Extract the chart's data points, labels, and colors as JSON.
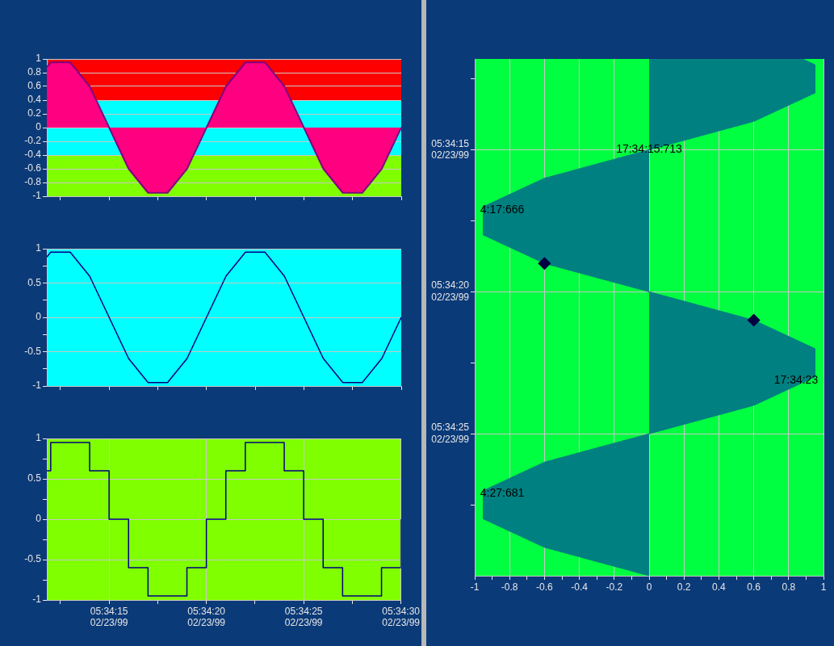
{
  "chart_data": [
    {
      "type": "area",
      "x": [
        "1999-02-23T05:34:11.800",
        "1999-02-23T05:34:12",
        "1999-02-23T05:34:13",
        "1999-02-23T05:34:14",
        "1999-02-23T05:34:15",
        "1999-02-23T05:34:16",
        "1999-02-23T05:34:17",
        "1999-02-23T05:34:18",
        "1999-02-23T05:34:19",
        "1999-02-23T05:34:20",
        "1999-02-23T05:34:21",
        "1999-02-23T05:34:22",
        "1999-02-23T05:34:23",
        "1999-02-23T05:34:24",
        "1999-02-23T05:34:25",
        "1999-02-23T05:34:26",
        "1999-02-23T05:34:27",
        "1999-02-23T05:34:28",
        "1999-02-23T05:34:29",
        "1999-02-23T05:34:30"
      ],
      "values": [
        0.88,
        0.95,
        0.95,
        0.6,
        0,
        -0.6,
        -0.95,
        -0.95,
        -0.6,
        0,
        0.6,
        0.95,
        0.95,
        0.6,
        0,
        -0.6,
        -0.95,
        -0.95,
        -0.6,
        0
      ],
      "color": "#ff0080",
      "xlim": [
        "1999-02-23T05:34:11.800",
        "1999-02-23T05:34:30"
      ],
      "xticks": [
        {
          "value": "1999-02-23T05:34:12.500",
          "label": null
        },
        {
          "value": "1999-02-23T05:34:15",
          "label": null
        },
        {
          "value": "1999-02-23T05:34:17.500",
          "label": null
        },
        {
          "value": "1999-02-23T05:34:20",
          "label": null
        },
        {
          "value": "1999-02-23T05:34:22.500",
          "label": null
        },
        {
          "value": "1999-02-23T05:34:25",
          "label": null
        },
        {
          "value": "1999-02-23T05:34:27.500",
          "label": null
        },
        {
          "value": "1999-02-23T05:34:30",
          "label": null
        }
      ],
      "ylim": [
        -1,
        1
      ],
      "yticks": [
        -1,
        -0.8,
        -0.6,
        -0.4,
        -0.2,
        0,
        0.2,
        0.4,
        0.6,
        0.8,
        1
      ],
      "grid": true,
      "tick_labels": "y",
      "marker": "none",
      "bands": [
        {
          "axis": "y",
          "from": 0.4,
          "to": 1,
          "color": "#ff0000"
        },
        {
          "axis": "y",
          "from": -0.4,
          "to": 0.4,
          "color": "#00ffff"
        },
        {
          "axis": "y",
          "from": -1,
          "to": -0.4,
          "color": "#80ff00"
        }
      ]
    },
    {
      "type": "line",
      "x": [
        "1999-02-23T05:34:11.800",
        "1999-02-23T05:34:12",
        "1999-02-23T05:34:13",
        "1999-02-23T05:34:14",
        "1999-02-23T05:34:15",
        "1999-02-23T05:34:16",
        "1999-02-23T05:34:17",
        "1999-02-23T05:34:18",
        "1999-02-23T05:34:19",
        "1999-02-23T05:34:20",
        "1999-02-23T05:34:21",
        "1999-02-23T05:34:22",
        "1999-02-23T05:34:23",
        "1999-02-23T05:34:24",
        "1999-02-23T05:34:25",
        "1999-02-23T05:34:26",
        "1999-02-23T05:34:27",
        "1999-02-23T05:34:28",
        "1999-02-23T05:34:29",
        "1999-02-23T05:34:30"
      ],
      "values": [
        0.88,
        0.95,
        0.95,
        0.6,
        0,
        -0.6,
        -0.95,
        -0.95,
        -0.6,
        0,
        0.6,
        0.95,
        0.95,
        0.6,
        0,
        -0.6,
        -0.95,
        -0.95,
        -0.6,
        0
      ],
      "color": "#000080",
      "xlim": [
        "1999-02-23T05:34:11.800",
        "1999-02-23T05:34:30"
      ],
      "xticks": [
        {
          "value": "1999-02-23T05:34:12.500",
          "label": null
        },
        {
          "value": "1999-02-23T05:34:15",
          "label": null
        },
        {
          "value": "1999-02-23T05:34:17.500",
          "label": null
        },
        {
          "value": "1999-02-23T05:34:20",
          "label": null
        },
        {
          "value": "1999-02-23T05:34:22.500",
          "label": null
        },
        {
          "value": "1999-02-23T05:34:25",
          "label": null
        },
        {
          "value": "1999-02-23T05:34:27.500",
          "label": null
        },
        {
          "value": "1999-02-23T05:34:30",
          "label": null
        }
      ],
      "ylim": [
        -1,
        1
      ],
      "yticks": [
        -1,
        {
          "value": -0.75,
          "label": null
        },
        -0.5,
        {
          "value": -0.25,
          "label": null
        },
        0,
        {
          "value": 0.25,
          "label": null
        },
        0.5,
        {
          "value": 0.75,
          "label": null
        },
        1
      ],
      "grid": true,
      "tick_labels": "y",
      "marker": "none"
    },
    {
      "type": "step",
      "x": [
        "1999-02-23T05:34:11.800",
        "1999-02-23T05:34:12",
        "1999-02-23T05:34:13",
        "1999-02-23T05:34:14",
        "1999-02-23T05:34:15",
        "1999-02-23T05:34:16",
        "1999-02-23T05:34:17",
        "1999-02-23T05:34:18",
        "1999-02-23T05:34:19",
        "1999-02-23T05:34:20",
        "1999-02-23T05:34:21",
        "1999-02-23T05:34:22",
        "1999-02-23T05:34:23",
        "1999-02-23T05:34:24",
        "1999-02-23T05:34:25",
        "1999-02-23T05:34:26",
        "1999-02-23T05:34:27",
        "1999-02-23T05:34:28",
        "1999-02-23T05:34:29",
        "1999-02-23T05:34:30"
      ],
      "values": [
        0.6,
        0.95,
        0.95,
        0.6,
        0,
        -0.6,
        -0.95,
        -0.95,
        -0.6,
        0,
        0.6,
        0.95,
        0.95,
        0.6,
        0,
        -0.6,
        -0.95,
        -0.95,
        -0.6,
        0
      ],
      "color": "#000080",
      "xlim": [
        "1999-02-23T05:34:11.800",
        "1999-02-23T05:34:30"
      ],
      "xticks": [
        {
          "value": "1999-02-23T05:34:12.500",
          "label": null
        },
        {
          "value": "1999-02-23T05:34:15",
          "label": "05:34:15\n02/23/99"
        },
        {
          "value": "1999-02-23T05:34:17.500",
          "label": null
        },
        {
          "value": "1999-02-23T05:34:20",
          "label": "05:34:20\n02/23/99"
        },
        {
          "value": "1999-02-23T05:34:22.500",
          "label": null
        },
        {
          "value": "1999-02-23T05:34:25",
          "label": "05:34:25\n02/23/99"
        },
        {
          "value": "1999-02-23T05:34:27.500",
          "label": null
        },
        {
          "value": "1999-02-23T05:34:30",
          "label": "05:34:30\n02/23/99"
        }
      ],
      "ylim": [
        -1,
        1
      ],
      "yticks": [
        -1,
        {
          "value": -0.75,
          "label": null
        },
        -0.5,
        {
          "value": -0.25,
          "label": null
        },
        0,
        {
          "value": 0.25,
          "label": null
        },
        0.5,
        {
          "value": 0.75,
          "label": null
        },
        1
      ],
      "grid": true,
      "marker": "none"
    },
    {
      "type": "area",
      "orientation": "horizontal",
      "x": [
        "1999-02-23T05:34:11.800",
        "1999-02-23T05:34:12",
        "1999-02-23T05:34:13",
        "1999-02-23T05:34:14",
        "1999-02-23T05:34:15",
        "1999-02-23T05:34:16",
        "1999-02-23T05:34:17",
        "1999-02-23T05:34:18",
        "1999-02-23T05:34:19",
        "1999-02-23T05:34:20",
        "1999-02-23T05:34:21",
        "1999-02-23T05:34:22",
        "1999-02-23T05:34:23",
        "1999-02-23T05:34:24",
        "1999-02-23T05:34:25",
        "1999-02-23T05:34:26",
        "1999-02-23T05:34:27",
        "1999-02-23T05:34:28",
        "1999-02-23T05:34:29",
        "1999-02-23T05:34:30"
      ],
      "series": [
        {
          "values": [
            0.88,
            0.95,
            0.95,
            0.6,
            0,
            -0.6,
            -0.95,
            -0.95,
            -0.6,
            0,
            0.6,
            0.95,
            0.95,
            0.6,
            0,
            -0.6,
            -0.95,
            -0.95,
            -0.6,
            0
          ],
          "color": "#008080"
        },
        {
          "type": "scatter",
          "x": [
            "1999-02-23T05:34:19",
            "1999-02-23T05:34:21"
          ],
          "values": [
            -0.6,
            0.6
          ],
          "color": "#000040",
          "marker": "diamond"
        }
      ],
      "xlim": [
        -1,
        1
      ],
      "xticks": [
        -1,
        {
          "value": -0.9,
          "label": null
        },
        -0.8,
        {
          "value": -0.7,
          "label": null
        },
        -0.6,
        {
          "value": -0.5,
          "label": null
        },
        -0.4,
        {
          "value": -0.3,
          "label": null
        },
        -0.2,
        {
          "value": -0.1,
          "label": null
        },
        0,
        {
          "value": 0.1,
          "label": null
        },
        0.2,
        {
          "value": 0.3,
          "label": null
        },
        0.4,
        {
          "value": 0.5,
          "label": null
        },
        0.6,
        {
          "value": 0.7,
          "label": null
        },
        0.8,
        {
          "value": 0.9,
          "label": null
        },
        1
      ],
      "ylim": [
        "1999-02-23T05:34:30",
        "1999-02-23T05:34:11.800"
      ],
      "yticks": [
        {
          "value": "1999-02-23T05:34:12.500",
          "label": null
        },
        {
          "value": "1999-02-23T05:34:15",
          "label": "05:34:15\n02/23/99"
        },
        {
          "value": "1999-02-23T05:34:17.500",
          "label": null
        },
        {
          "value": "1999-02-23T05:34:20",
          "label": "05:34:20\n02/23/99"
        },
        {
          "value": "1999-02-23T05:34:22.500",
          "label": null
        },
        {
          "value": "1999-02-23T05:34:25",
          "label": "05:34:25\n02/23/99"
        },
        {
          "value": "1999-02-23T05:34:27.500",
          "label": null
        }
      ],
      "grid": true,
      "marker": "none",
      "annotations": [
        {
          "text": "17:34:15:713",
          "x": 0,
          "y": "1999-02-23T05:34:15"
        },
        {
          "text": "4:17:666",
          "x": -0.95,
          "y": "1999-02-23T05:34:17"
        },
        {
          "text": "17:34:23",
          "x": 0.95,
          "y": "1999-02-23T05:34:23"
        },
        {
          "text": "4:27:681",
          "x": -0.95,
          "y": "1999-02-23T05:34:27"
        }
      ]
    }
  ]
}
